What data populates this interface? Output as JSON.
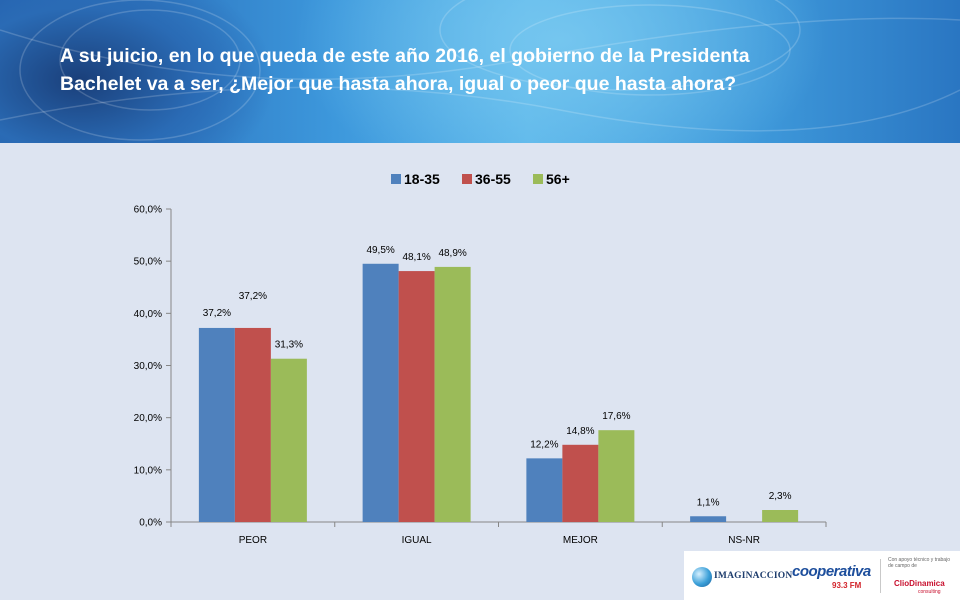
{
  "header": {
    "title_line1": "A su juicio, en lo que queda de este año 2016,  el gobierno de la Presidenta",
    "title_line2": "Bachelet va a ser, ¿Mejor que hasta ahora, igual o  peor que hasta ahora?"
  },
  "logos": {
    "imaginaccion": "IMAGINACCION",
    "cooperativa": "cooperativa",
    "cooperativa_freq": "93.3 FM",
    "clio_note": "Con apoyo técnico y trabajo de campo de",
    "clio": "ClioDinamica",
    "clio_sub": "consulting"
  },
  "colors": {
    "series": [
      "#4f81bd",
      "#c0504d",
      "#9bbb59"
    ],
    "plot_background": "#dde4f1",
    "axis": "#868686",
    "title_text": "#ffffff"
  },
  "chart_data": {
    "type": "bar",
    "categories": [
      "PEOR",
      "IGUAL",
      "MEJOR",
      "NS-NR"
    ],
    "series": [
      {
        "name": "18-35",
        "values": [
          37.2,
          49.5,
          12.2,
          1.1
        ],
        "labels": [
          "37,2%",
          "49,5%",
          "12,2%",
          "1,1%"
        ]
      },
      {
        "name": "36-55",
        "values": [
          37.2,
          48.1,
          14.8,
          null
        ],
        "labels": [
          "37,2%",
          "48,1%",
          "14,8%",
          ""
        ]
      },
      {
        "name": "56+",
        "values": [
          31.3,
          48.9,
          17.6,
          2.3
        ],
        "labels": [
          "31,3%",
          "48,9%",
          "17,6%",
          "2,3%"
        ]
      }
    ],
    "yticks": [
      "0,0%",
      "10,0%",
      "20,0%",
      "30,0%",
      "40,0%",
      "50,0%",
      "60,0%"
    ],
    "ylim": [
      0,
      60
    ],
    "legend_position": "top-center",
    "grid": false
  }
}
